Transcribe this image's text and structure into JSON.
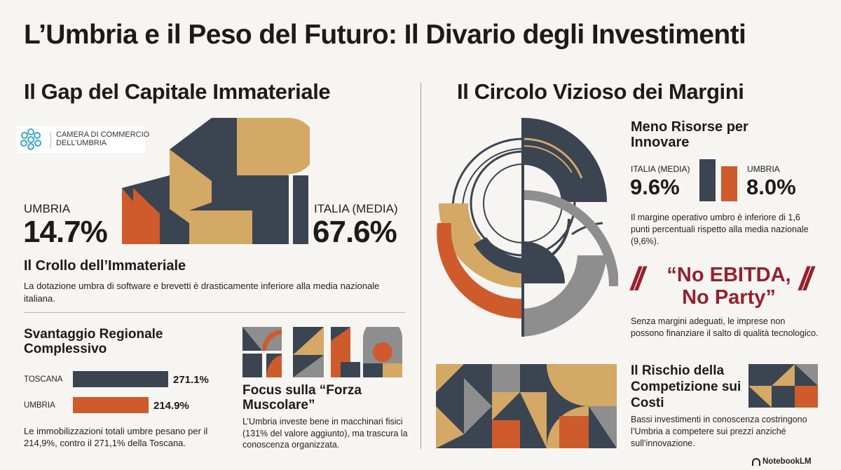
{
  "main_title": "L’Umbria e il Peso del Futuro: Il Divario degli Investimenti",
  "left": {
    "section_title": "Il Gap del Capitale Immateriale",
    "logo": {
      "line1": "CAMERA DI COMMERCIO",
      "line2": "DELL’UMBRIA"
    },
    "umbria_label": "UMBRIA",
    "umbria_value": "14.7%",
    "italia_label": "ITALIA (MEDIA)",
    "italia_value": "67.6%",
    "crollo_title": "Il Crollo dell’Immateriale",
    "crollo_text": "La dotazione umbra di software e brevetti è drasticamente inferiore alla media nazionale italiana.",
    "svantaggio_title": "Svantaggio Regionale Complessivo",
    "bars": [
      {
        "label": "TOSCANA",
        "value": 271.1,
        "display": "271.1%"
      },
      {
        "label": "UMBRIA",
        "value": 214.9,
        "display": "214.9%"
      }
    ],
    "svantaggio_text": "Le immobilizzazioni totali umbre pesano per il 214,9%, contro il 271,1% della Toscana.",
    "focus_title": "Focus sulla “Forza Muscolare”",
    "focus_text": "L’Umbria investe bene in macchinari fisici (131% del valore aggiunto), ma trascura la conoscenza organizzata."
  },
  "right": {
    "section_title": "Il Circolo Vizioso dei Margini",
    "meno_title": "Meno Risorse per Innovare",
    "italia_media_label": "ITALIA (MEDIA)",
    "italia_media_value": "9.6%",
    "umbria_label": "UMBRIA",
    "umbria_value": "8.0%",
    "mini_bars": {
      "italia": 9.6,
      "umbria": 8.0
    },
    "margine_text": "Il margine operativo umbro è inferiore di 1,6 punti percentuali rispetto alla media nazionale (9,6%).",
    "quote_line1": "“No EBITDA,",
    "quote_line2": "No Party”",
    "senza_text": "Senza margini adeguati, le imprese non possono finanziare il salto di qualità tecnologico.",
    "rischio_title": "Il Rischio della Competizione sui Costi",
    "rischio_text": "Bassi investimenti in conoscenza costringono l’Umbria a competere sui prezzi anziché sull’innovazione."
  },
  "footer": {
    "brand": "NotebookLM"
  },
  "colors": {
    "navy": "#3b4451",
    "orange": "#cf5a2c",
    "gold": "#d4a865",
    "grey": "#8e8e8e",
    "burgundy": "#94212d",
    "logo_teal": "#3aa7c9"
  }
}
